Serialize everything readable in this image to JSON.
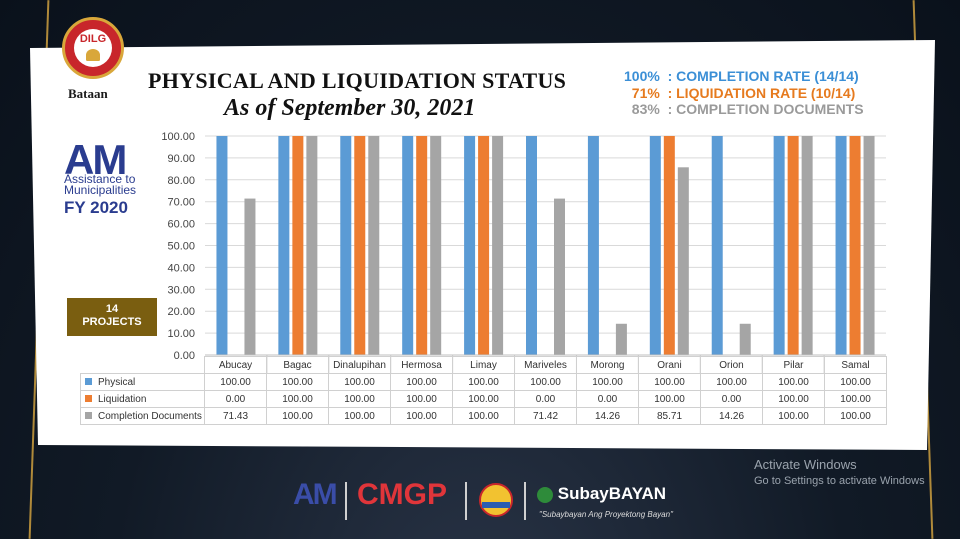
{
  "header": {
    "logo_text": "DILG",
    "logo_sub": "Bataan",
    "title": "PHYSICAL AND LIQUIDATION STATUS",
    "subtitle": "As of September 30, 2021"
  },
  "stats": [
    {
      "text": "100%  : COMPLETION RATE (14/14)",
      "color": "#3b8fd6"
    },
    {
      "text": "  71%  : LIQUIDATION RATE (10/14)",
      "color": "#e67a1e"
    },
    {
      "text": "  83%  : COMPLETION DOCUMENTS",
      "color": "#9a9a9a"
    }
  ],
  "program": {
    "logo": "AM",
    "line1": "Assistance to",
    "line2": "Municipalities",
    "fy": "FY 2020",
    "projects_count": "14",
    "projects_label": "PROJECTS"
  },
  "chart_data": {
    "type": "bar",
    "categories": [
      "Abucay",
      "Bagac",
      "Dinalupihan",
      "Hermosa",
      "Limay",
      "Mariveles",
      "Morong",
      "Orani",
      "Orion",
      "Pilar",
      "Samal"
    ],
    "series": [
      {
        "name": "Physical",
        "color": "#5b9bd5",
        "values": [
          100.0,
          100.0,
          100.0,
          100.0,
          100.0,
          100.0,
          100.0,
          100.0,
          100.0,
          100.0,
          100.0
        ],
        "labels": [
          "100.00",
          "100.00",
          "100.00",
          "100.00",
          "100.00",
          "100.00",
          "100.00",
          "100.00",
          "100.00",
          "100.00",
          "100.00"
        ]
      },
      {
        "name": "Liquidation",
        "color": "#ed7d31",
        "values": [
          0.0,
          100.0,
          100.0,
          100.0,
          100.0,
          0.0,
          0.0,
          100.0,
          0.0,
          100.0,
          100.0
        ],
        "labels": [
          "0.00",
          "100.00",
          "100.00",
          "100.00",
          "100.00",
          "0.00",
          "0.00",
          "100.00",
          "0.00",
          "100.00",
          "100.00"
        ]
      },
      {
        "name": "Completion Documents",
        "color": "#a5a5a5",
        "values": [
          71.43,
          100.0,
          100.0,
          100.0,
          100.0,
          71.42,
          14.26,
          85.71,
          14.26,
          100.0,
          100.0
        ],
        "labels": [
          "71.43",
          "100.00",
          "100.00",
          "100.00",
          "100.00",
          "71.42",
          "14.26",
          "85.71",
          "14.26",
          "100.00",
          "100.00"
        ]
      }
    ],
    "yticks": [
      "0.00",
      "10.00",
      "20.00",
      "30.00",
      "40.00",
      "50.00",
      "60.00",
      "70.00",
      "80.00",
      "90.00",
      "100.00"
    ],
    "ylim": [
      0,
      100
    ],
    "grid": true,
    "legend": "data table below chart"
  },
  "watermark": {
    "line1": "Activate Windows",
    "line2": "Go to Settings to activate Windows"
  },
  "footer": {
    "logo1": "AM",
    "logo2": "CMGP",
    "logo4": "SubayBAYAN",
    "tagline": "\"Subaybayan Ang Proyektong Bayan\""
  }
}
